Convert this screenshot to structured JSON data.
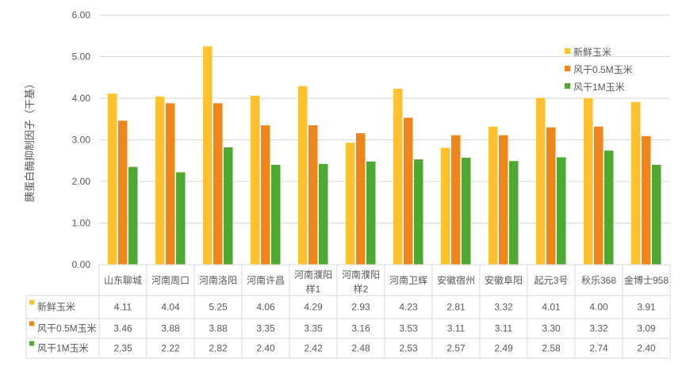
{
  "chart_data": {
    "type": "bar",
    "title": "",
    "xlabel": "",
    "ylabel": "胰蛋白酶抑制因子（干基）",
    "ylim": [
      0,
      6
    ],
    "yticks": [
      "0.00",
      "1.00",
      "2.00",
      "3.00",
      "4.00",
      "5.00",
      "6.00"
    ],
    "grid": true,
    "legend_position": "top-right",
    "categories": [
      [
        "山东聊城"
      ],
      [
        "河南周口"
      ],
      [
        "河南洛阳"
      ],
      [
        "河南许昌"
      ],
      [
        "河南濮阳",
        "样1"
      ],
      [
        "河南濮阳",
        "样2"
      ],
      [
        "河南卫辉"
      ],
      [
        "安徽宿州"
      ],
      [
        "安徽阜阳"
      ],
      [
        "起元3号"
      ],
      [
        "秋乐368"
      ],
      [
        "金博士958"
      ]
    ],
    "series": [
      {
        "name": "新鲜玉米",
        "color": "#FFC12F",
        "values": [
          4.11,
          4.04,
          5.25,
          4.06,
          4.29,
          2.93,
          4.23,
          2.81,
          3.32,
          4.01,
          4.0,
          3.91
        ],
        "labels": [
          "4.11",
          "4.04",
          "5.25",
          "4.06",
          "4.29",
          "2.93",
          "4.23",
          "2.81",
          "3.32",
          "4.01",
          "4.00",
          "3.91"
        ]
      },
      {
        "name": "风干0.5M玉米",
        "color": "#F08519",
        "values": [
          3.46,
          3.88,
          3.88,
          3.35,
          3.35,
          3.16,
          3.53,
          3.11,
          3.11,
          3.3,
          3.32,
          3.09
        ],
        "labels": [
          "3.46",
          "3.88",
          "3.88",
          "3.35",
          "3.35",
          "3.16",
          "3.53",
          "3.11",
          "3.11",
          "3.30",
          "3.32",
          "3.09"
        ]
      },
      {
        "name": "风干1M玉米",
        "color": "#4FA833",
        "values": [
          2.35,
          2.22,
          2.82,
          2.4,
          2.42,
          2.48,
          2.53,
          2.57,
          2.49,
          2.58,
          2.74,
          2.4
        ],
        "labels": [
          "2.35",
          "2.22",
          "2.82",
          "2.40",
          "2.42",
          "2.48",
          "2.53",
          "2.57",
          "2.49",
          "2.58",
          "2.74",
          "2.40"
        ]
      }
    ]
  }
}
